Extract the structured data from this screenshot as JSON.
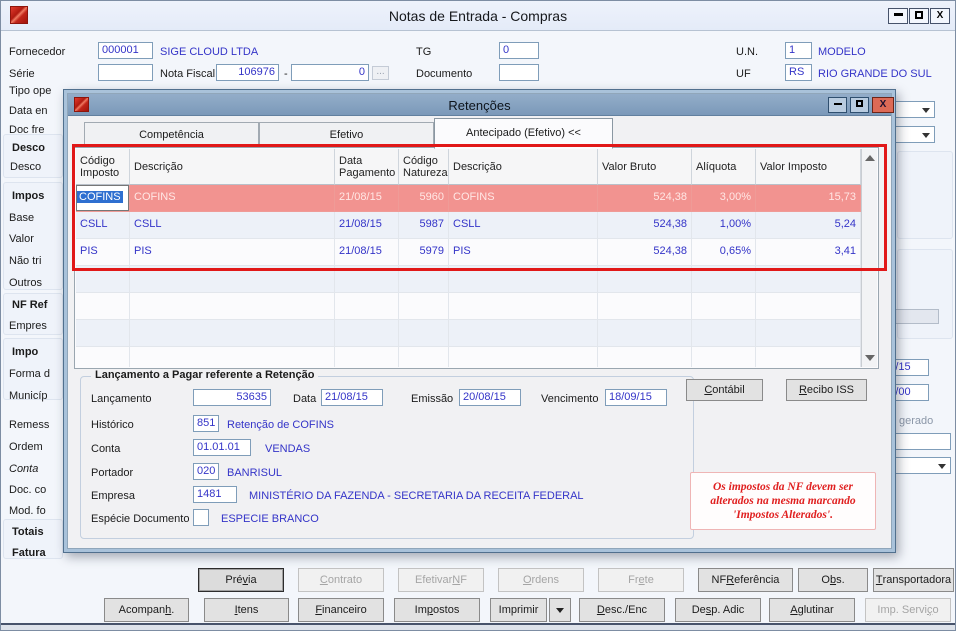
{
  "main_window": {
    "title": "Notas de Entrada - Compras",
    "window_icons": {
      "close_glyph": "X"
    },
    "fields": {
      "fornecedor_label": "Fornecedor",
      "fornecedor_code": "000001",
      "fornecedor_name": "SIGE CLOUD LTDA",
      "tg_label": "TG",
      "tg_value": "0",
      "un_label": "U.N.",
      "un_value": "1",
      "un_name": "MODELO",
      "serie_label": "Série",
      "serie_value": "",
      "nota_fiscal_label": "Nota Fiscal",
      "nota_fiscal_numero": "106976",
      "nota_fiscal_sep": "-",
      "nota_fiscal_serie": "0",
      "nota_fiscal_more": "...",
      "documento_label": "Documento",
      "documento_value": "",
      "uf_label": "UF",
      "uf_value": "RS",
      "uf_name": "RIO GRANDE DO SUL"
    },
    "left_fragments": [
      {
        "text": "Tipo ope"
      },
      {
        "text": "Data en"
      },
      {
        "text": "Doc fre"
      },
      {
        "text": "Desco"
      },
      {
        "text": "Desco"
      },
      {
        "text": "Impos"
      },
      {
        "text": "Base"
      },
      {
        "text": "Valor"
      },
      {
        "text": "Não tri"
      },
      {
        "text": "Outros"
      },
      {
        "text": "NF Ref"
      },
      {
        "text": "Empres"
      },
      {
        "text": "Impo"
      },
      {
        "text": "Forma d"
      },
      {
        "text": "Municíp"
      },
      {
        "text": "Remess"
      },
      {
        "text": "Ordem"
      },
      {
        "text": "Conta"
      },
      {
        "text": "Doc. co"
      },
      {
        "text": "Mod. fo"
      },
      {
        "text": "Totais"
      },
      {
        "text": "Fatura"
      }
    ],
    "right_fragments": {
      "date1": "/15",
      "date2": "/00",
      "gerado": "gerado"
    },
    "toolbar": {
      "row1": [
        {
          "label": "Prévia",
          "u": 3,
          "enabled": true,
          "emph": true
        },
        {
          "label": "Contrato",
          "u": 0,
          "enabled": false
        },
        {
          "label": "Efetivar NF",
          "u": 9,
          "enabled": false
        },
        {
          "label": "Ordens",
          "u": 0,
          "enabled": false
        },
        {
          "label": "Frete",
          "u": 2,
          "enabled": false
        },
        {
          "label": "NF Referência",
          "u": 3,
          "enabled": true
        },
        {
          "label": "Obs.",
          "u": 1,
          "enabled": true
        },
        {
          "label": "Transportadora",
          "u": 0,
          "enabled": true
        }
      ],
      "row2": [
        {
          "label": "Acompanh.",
          "u": 7,
          "enabled": true
        },
        {
          "label": "Itens",
          "u": 0,
          "enabled": true
        },
        {
          "label": "Financeiro",
          "u": 0,
          "enabled": true
        },
        {
          "label": "Impostos",
          "u": 2,
          "enabled": true
        },
        {
          "label": "Imprimir",
          "u": -1,
          "enabled": true
        },
        {
          "label": "Desc./Enc",
          "u": 0,
          "enabled": true
        },
        {
          "label": "Desp. Adic",
          "u": 2,
          "enabled": true
        },
        {
          "label": "Aglutinar",
          "u": 0,
          "enabled": true
        },
        {
          "label": "Imp. Serviço",
          "u": 10,
          "enabled": false
        }
      ]
    }
  },
  "modal": {
    "title": "Retenções",
    "window_icons": {
      "close_glyph": "X"
    },
    "tabs": [
      {
        "label": "Competência",
        "active": false
      },
      {
        "label": "Efetivo",
        "active": false
      },
      {
        "label": "Antecipado (Efetivo) <<",
        "active": true
      }
    ],
    "table": {
      "columns": [
        "Código\nImposto",
        "Descrição",
        "Data\nPagamento",
        "Código\nNatureza",
        "Descrição",
        "Valor Bruto",
        "Alíquota",
        "Valor Imposto"
      ],
      "rows": [
        {
          "cells": [
            "COFINS",
            "COFINS",
            "21/08/15",
            "5960",
            "COFINS",
            "524,38",
            "3,00%",
            "15,73"
          ],
          "selected": true
        },
        {
          "cells": [
            "CSLL",
            "CSLL",
            "21/08/15",
            "5987",
            "CSLL",
            "524,38",
            "1,00%",
            "5,24"
          ],
          "selected": false
        },
        {
          "cells": [
            "PIS",
            "PIS",
            "21/08/15",
            "5979",
            "PIS",
            "524,38",
            "0,65%",
            "3,41"
          ],
          "selected": false
        }
      ]
    },
    "groupbox": {
      "title": "Lançamento a Pagar referente a Retenção",
      "lancamento_label": "Lançamento",
      "lancamento_value": "53635",
      "data_label": "Data",
      "data_value": "21/08/15",
      "emissao_label": "Emissão",
      "emissao_value": "20/08/15",
      "vencimento_label": "Vencimento",
      "vencimento_value": "18/09/15",
      "historico_label": "Histórico",
      "historico_code": "851",
      "historico_desc": "Retenção de COFINS",
      "conta_label": "Conta",
      "conta_code": "01.01.01",
      "conta_desc": "VENDAS",
      "portador_label": "Portador",
      "portador_code": "020",
      "portador_desc": "BANRISUL",
      "empresa_label": "Empresa",
      "empresa_code": "1481",
      "empresa_desc": "MINISTÉRIO DA FAZENDA -  SECRETARIA DA RECEITA FEDERAL",
      "especie_label": "Espécie Documento",
      "especie_code": "",
      "especie_desc": "ESPECIE BRANCO"
    },
    "side_buttons": [
      {
        "label": "Contábil",
        "u": 0,
        "enabled": true
      },
      {
        "label": "Recibo ISS",
        "u": 0,
        "enabled": true
      }
    ],
    "note": "Os impostos da NF devem ser alterados na mesma marcando 'Impostos Alterados'."
  }
}
